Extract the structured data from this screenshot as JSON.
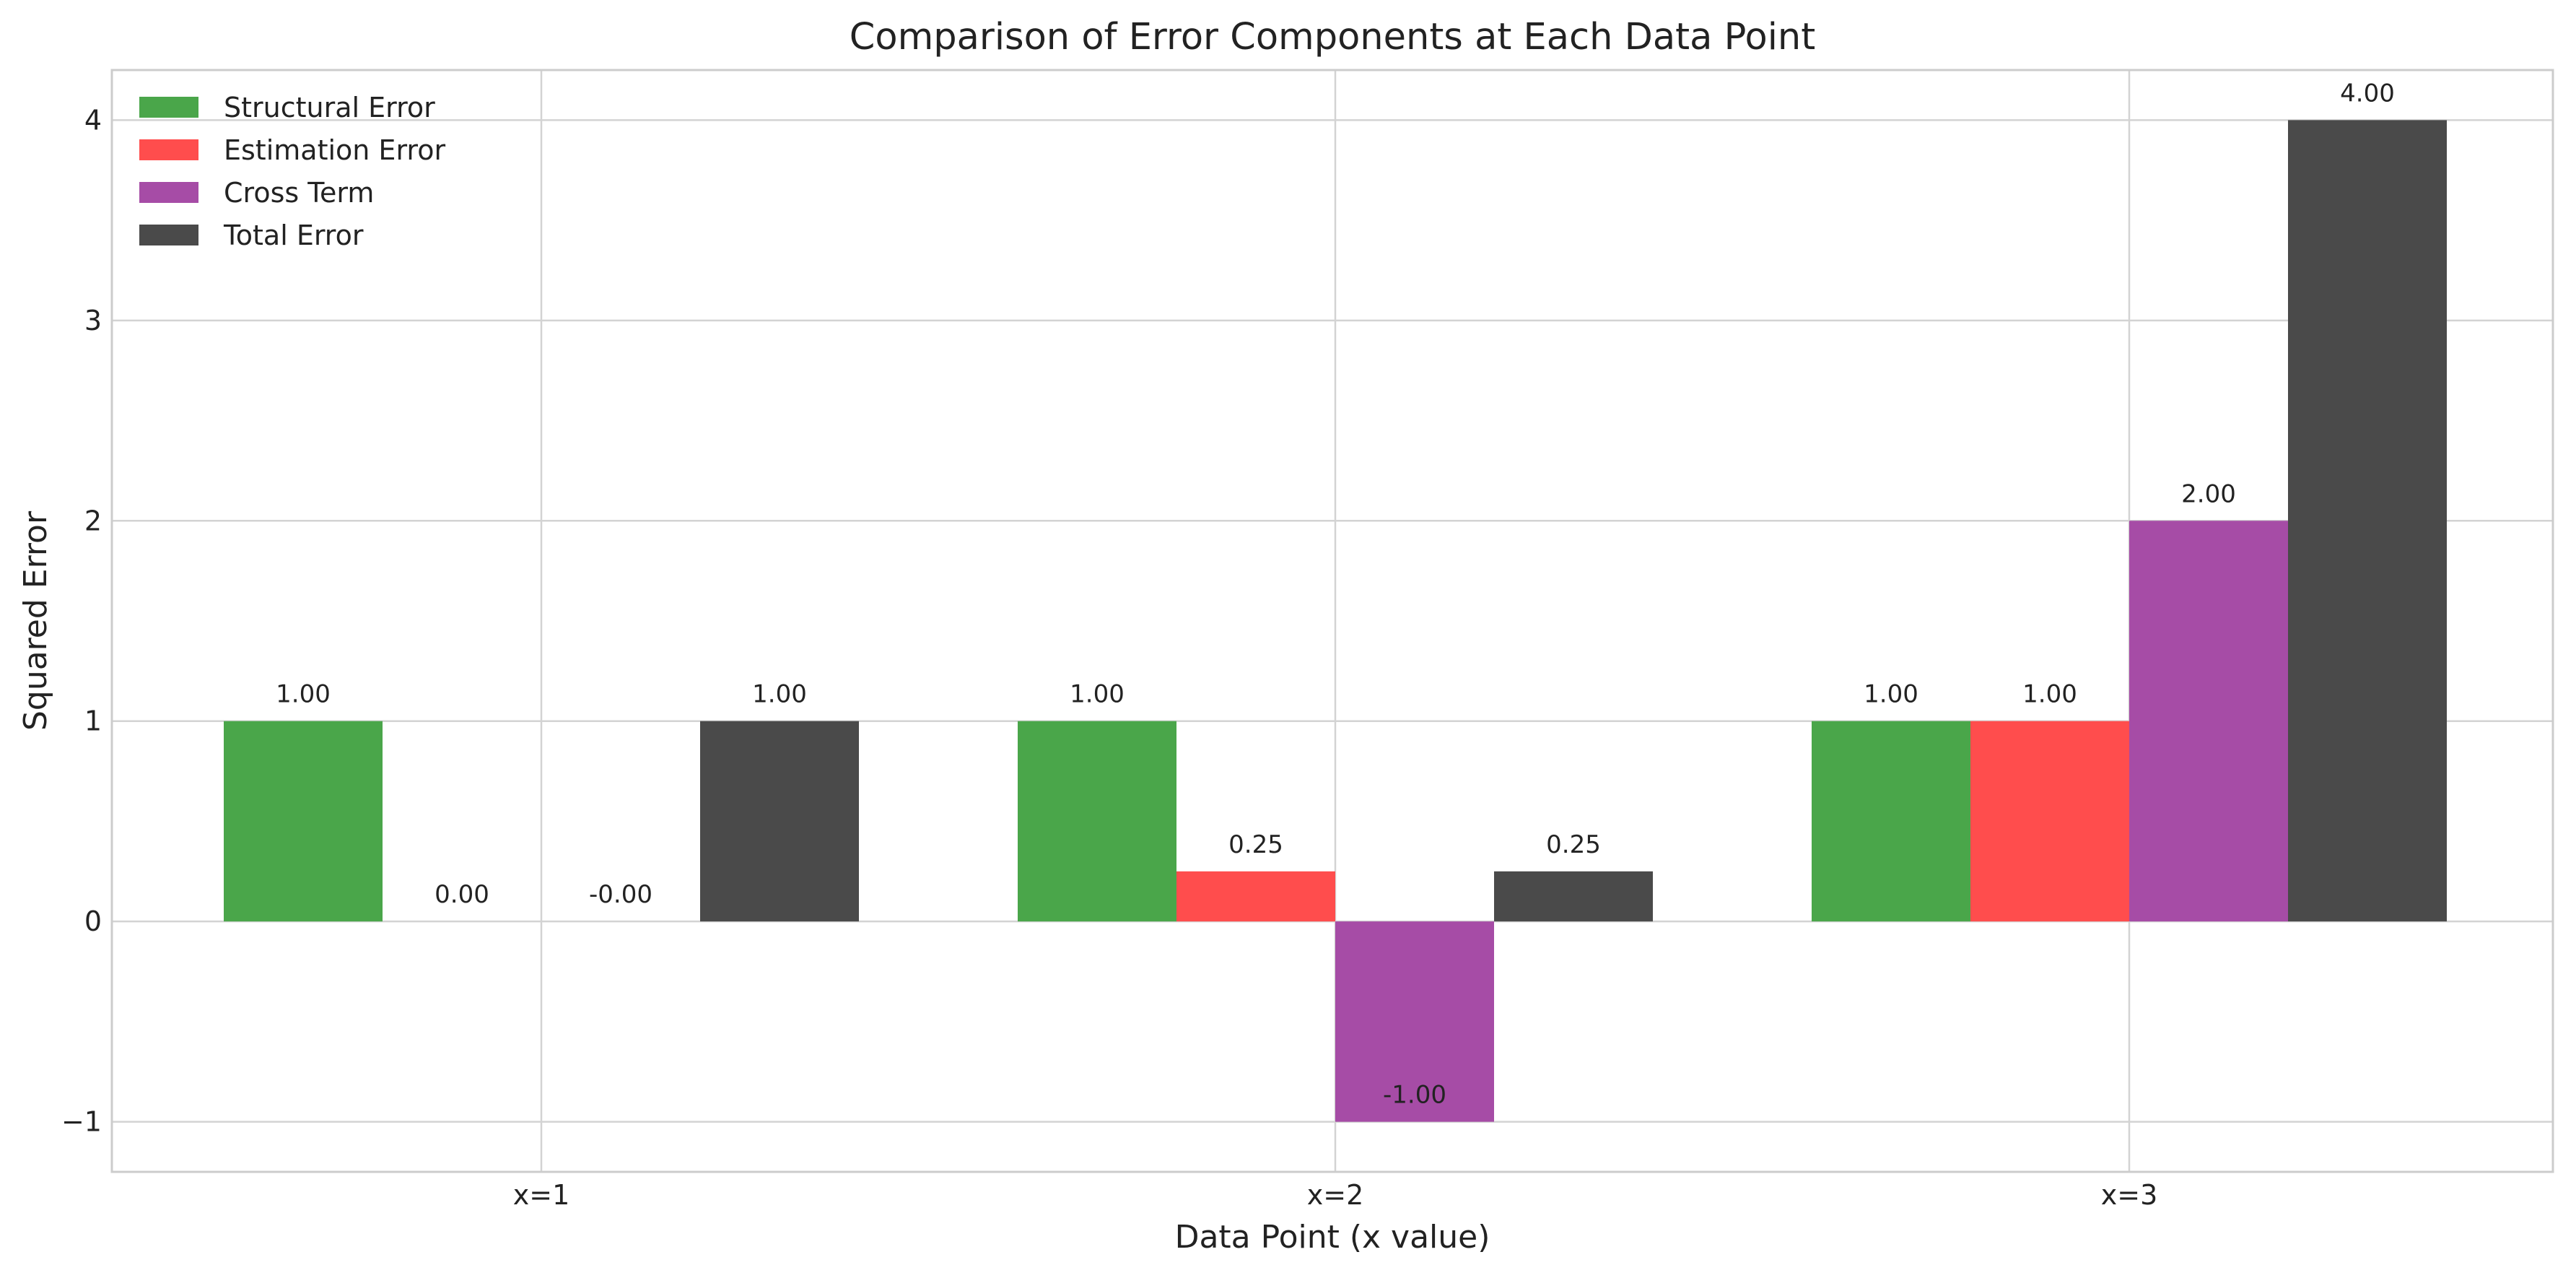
{
  "chart_data": {
    "type": "bar",
    "title": "Comparison of Error Components at Each Data Point",
    "xlabel": "Data Point (x value)",
    "ylabel": "Squared Error",
    "categories": [
      "x=1",
      "x=2",
      "x=3"
    ],
    "series": [
      {
        "name": "Structural Error",
        "color": "#4aa64a",
        "values": [
          1.0,
          1.0,
          1.0
        ],
        "labels": [
          "1.00",
          "1.00",
          "1.00"
        ]
      },
      {
        "name": "Estimation Error",
        "color": "#ff4d4d",
        "values": [
          0.0,
          0.25,
          1.0
        ],
        "labels": [
          "0.00",
          "0.25",
          "1.00"
        ]
      },
      {
        "name": "Cross Term",
        "color": "#a64ca6",
        "values": [
          0.0,
          -1.0,
          2.0
        ],
        "labels": [
          "-0.00",
          "-1.00",
          "2.00"
        ]
      },
      {
        "name": "Total Error",
        "color": "#4a4a4a",
        "values": [
          1.0,
          0.25,
          4.0
        ],
        "labels": [
          "1.00",
          "0.25",
          "4.00"
        ]
      }
    ],
    "ylim": [
      -1.25,
      4.25
    ],
    "yticks": [
      -1,
      0,
      1,
      2,
      3,
      4
    ],
    "ytick_labels": [
      "−1",
      "0",
      "1",
      "2",
      "3",
      "4"
    ],
    "grid": true,
    "legend_position": "top-left"
  }
}
